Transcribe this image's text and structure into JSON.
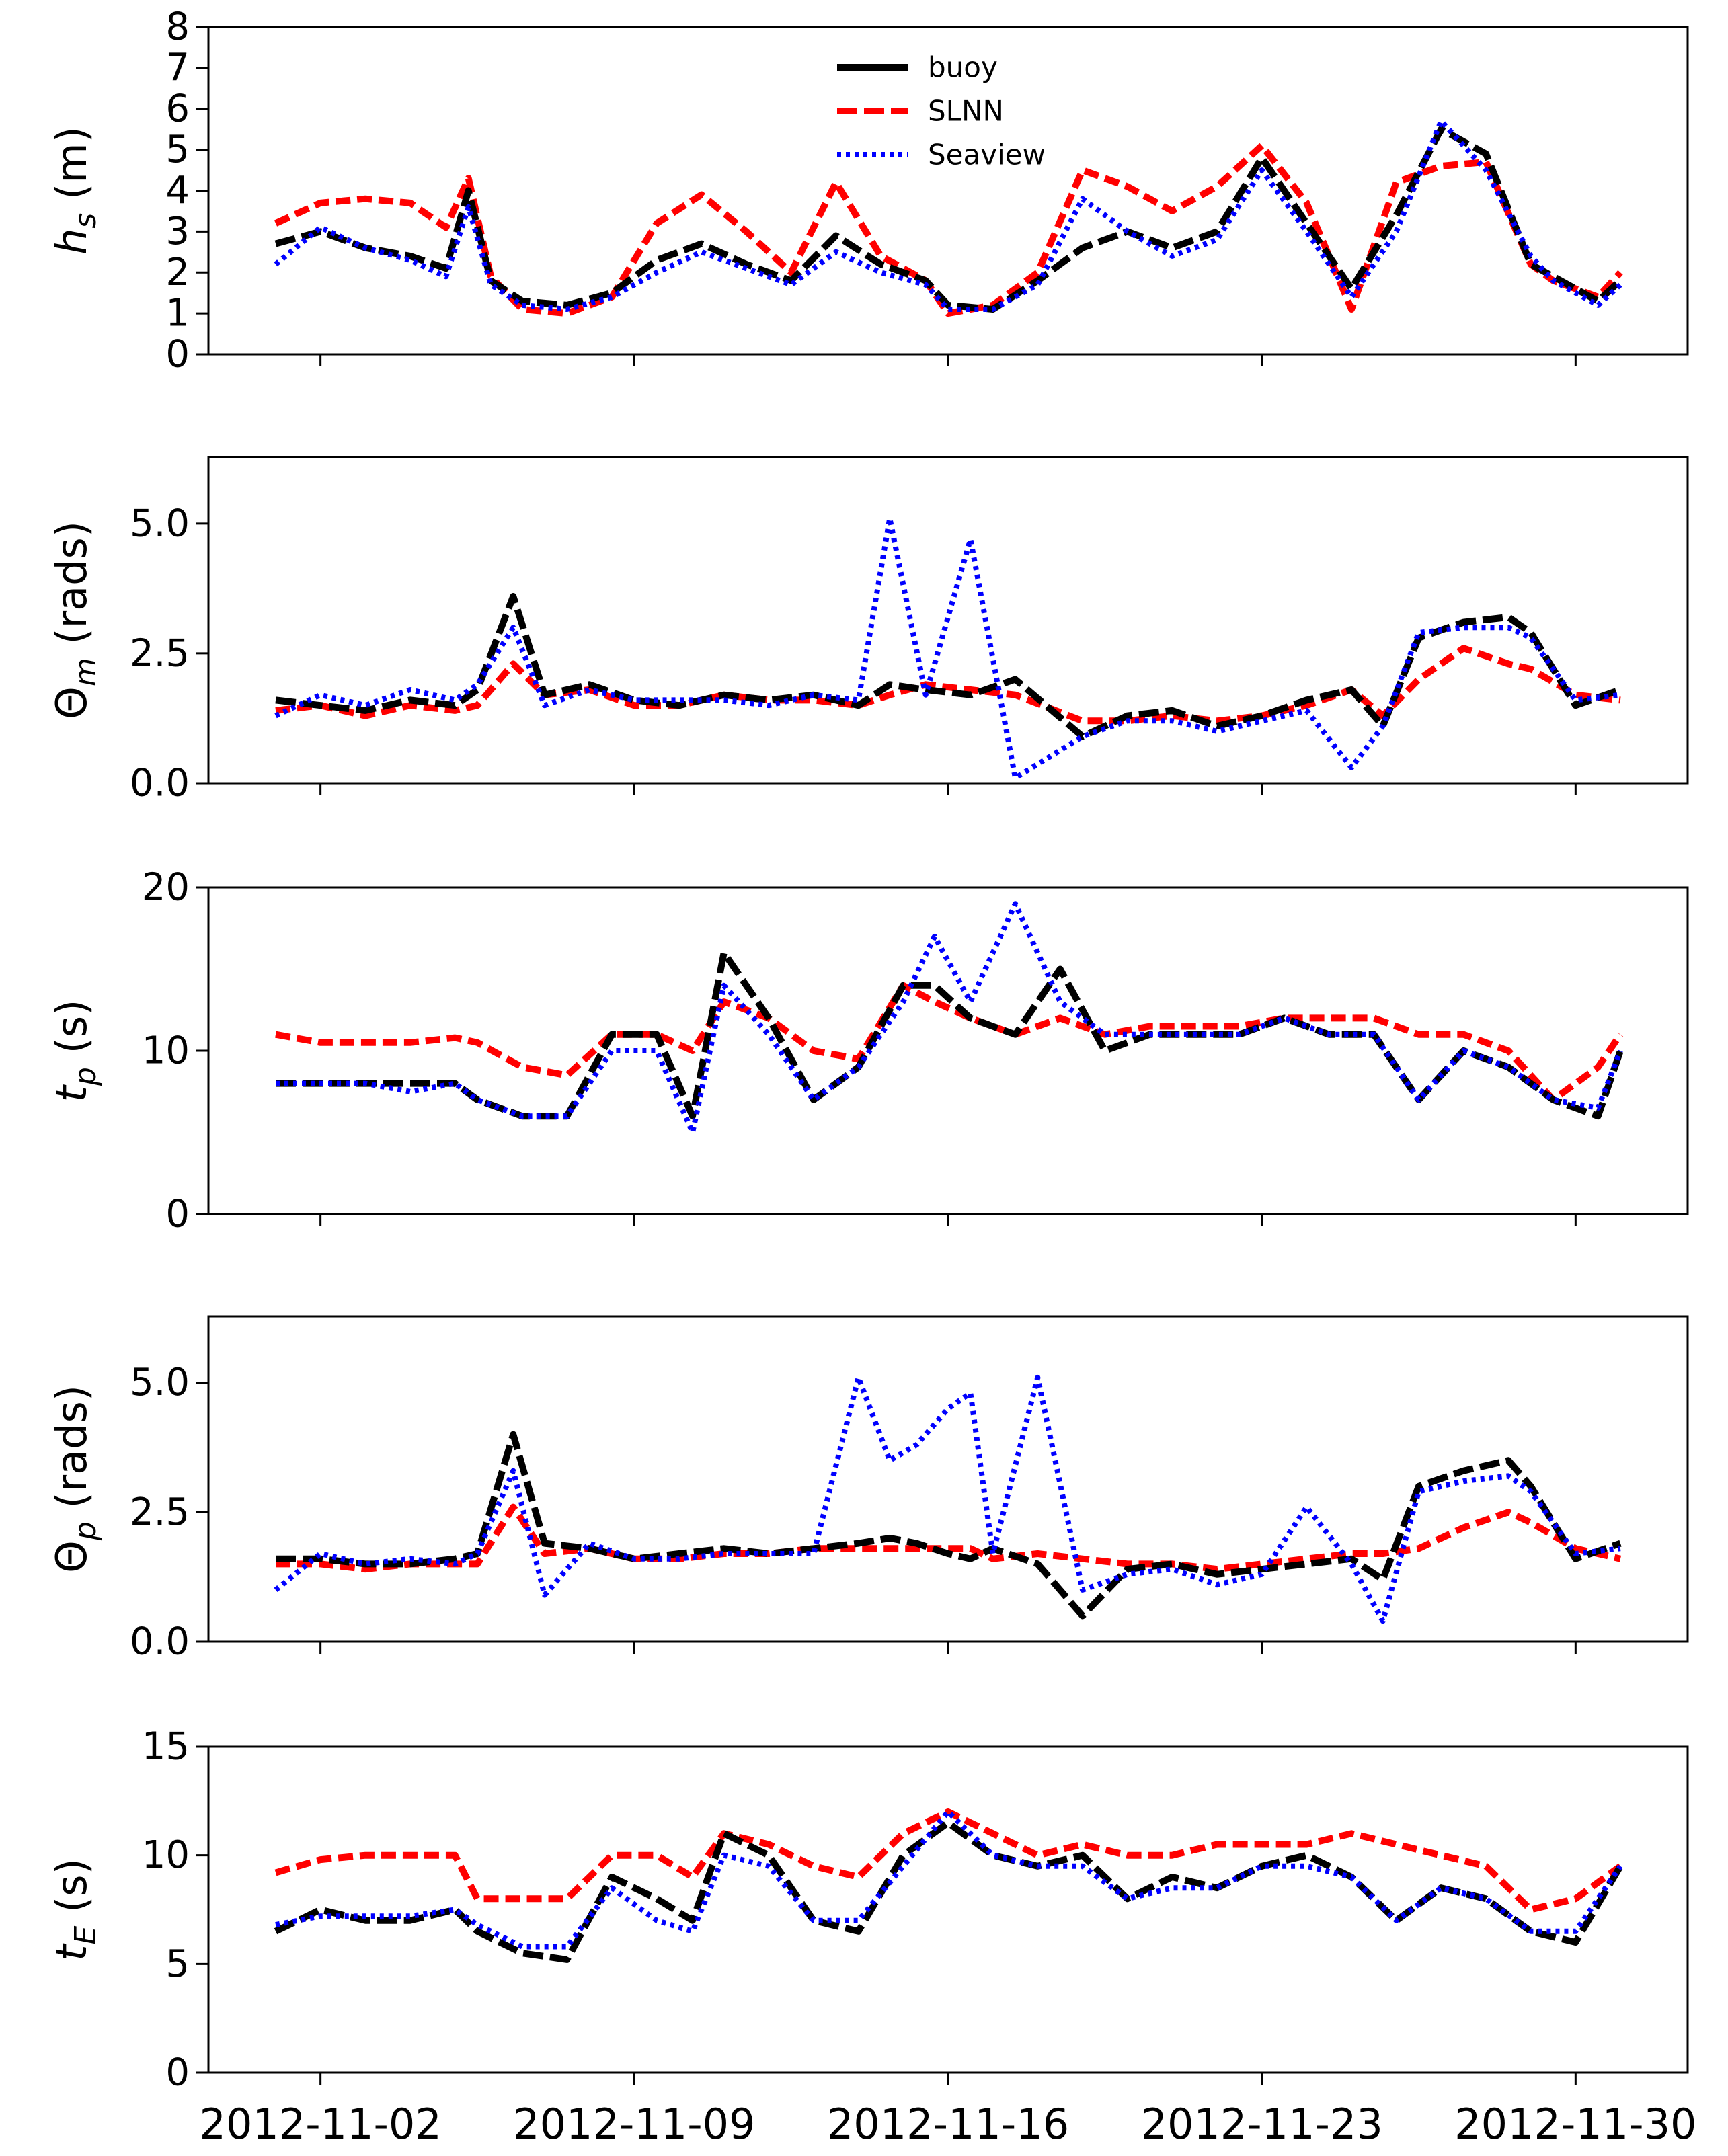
{
  "colors": {
    "buoy": "#000000",
    "SLNN": "#ff0000",
    "Seaview": "#0000ff"
  },
  "legend": {
    "position": "top-center of first panel",
    "entries": [
      {
        "label": "buoy",
        "style": "solid",
        "color": "#000000"
      },
      {
        "label": "SLNN",
        "style": "dashed",
        "color": "#ff0000"
      },
      {
        "label": "Seaview",
        "style": "dotted",
        "color": "#0000ff"
      }
    ]
  },
  "x_axis": {
    "type": "date",
    "range_days": [
      -2.5,
      30.5
    ],
    "day_zero": "2012-11-02",
    "ticks": [
      {
        "day": 0,
        "label": "2012-11-02"
      },
      {
        "day": 7,
        "label": "2012-11-09"
      },
      {
        "day": 14,
        "label": "2012-11-16"
      },
      {
        "day": 21,
        "label": "2012-11-23"
      },
      {
        "day": 28,
        "label": "2012-11-30"
      }
    ]
  },
  "chart_data": [
    {
      "type": "line",
      "ylabel_main": "h",
      "ylabel_sub": "s",
      "ylabel_rest": " (m)",
      "ylim": [
        0,
        8
      ],
      "yticks": [
        0,
        1,
        2,
        3,
        4,
        5,
        6,
        7,
        8
      ],
      "ytick_labels": [
        "0",
        "1",
        "2",
        "3",
        "4",
        "5",
        "6",
        "7",
        "8"
      ],
      "x": [
        -1,
        0,
        1,
        2,
        2.8,
        3.3,
        3.8,
        4.5,
        5.5,
        6.5,
        7.5,
        8.5,
        9.5,
        10.5,
        11.5,
        12.5,
        13.5,
        14,
        15,
        16,
        17,
        18,
        19,
        20,
        21,
        22,
        23,
        24,
        25,
        26,
        27,
        27.5,
        28.5,
        29
      ],
      "series": [
        {
          "name": "buoy",
          "values": [
            2.7,
            3.0,
            2.6,
            2.4,
            2.1,
            4.0,
            1.8,
            1.3,
            1.2,
            1.5,
            2.3,
            2.7,
            2.2,
            1.8,
            2.9,
            2.2,
            1.8,
            1.2,
            1.1,
            1.8,
            2.6,
            3.0,
            2.6,
            3.0,
            4.8,
            3.2,
            1.6,
            3.4,
            5.5,
            4.9,
            2.2,
            1.9,
            1.3,
            1.8
          ]
        },
        {
          "name": "SLNN",
          "values": [
            3.2,
            3.7,
            3.8,
            3.7,
            3.1,
            4.3,
            1.9,
            1.1,
            1.0,
            1.4,
            3.2,
            3.9,
            3.0,
            2.0,
            4.2,
            2.4,
            1.8,
            1.0,
            1.2,
            2.0,
            4.5,
            4.1,
            3.5,
            4.1,
            5.1,
            3.7,
            1.1,
            4.2,
            4.6,
            4.7,
            2.2,
            1.8,
            1.4,
            2.0
          ]
        },
        {
          "name": "Seaview",
          "values": [
            2.2,
            3.1,
            2.6,
            2.3,
            1.9,
            3.6,
            1.7,
            1.2,
            1.1,
            1.4,
            2.0,
            2.5,
            2.1,
            1.7,
            2.5,
            2.0,
            1.7,
            1.1,
            1.1,
            1.7,
            3.8,
            3.0,
            2.4,
            2.8,
            4.5,
            3.0,
            1.4,
            3.0,
            5.7,
            4.5,
            2.4,
            1.8,
            1.2,
            1.7
          ]
        }
      ]
    },
    {
      "type": "line",
      "ylabel_main": "Θ",
      "ylabel_sub": "m",
      "ylabel_rest": " (rads)",
      "ylim": [
        0,
        6.28
      ],
      "yticks": [
        0,
        2.5,
        5
      ],
      "ytick_labels": [
        "0.0",
        "2.5",
        "5.0"
      ],
      "x": [
        -1,
        0,
        1,
        2,
        3,
        3.5,
        4.3,
        5,
        6,
        7,
        8,
        9,
        10,
        11,
        12,
        12.7,
        13.5,
        14.5,
        15.5,
        17,
        18,
        19,
        20,
        21,
        22,
        23,
        23.7,
        24.5,
        25.5,
        26.5,
        27,
        28,
        29
      ],
      "series": [
        {
          "name": "buoy",
          "values": [
            1.6,
            1.5,
            1.4,
            1.6,
            1.5,
            1.8,
            3.6,
            1.7,
            1.9,
            1.6,
            1.5,
            1.7,
            1.6,
            1.7,
            1.5,
            1.9,
            1.8,
            1.7,
            2.0,
            0.9,
            1.3,
            1.4,
            1.1,
            1.3,
            1.6,
            1.8,
            1.1,
            2.8,
            3.1,
            3.2,
            2.9,
            1.5,
            1.8
          ]
        },
        {
          "name": "SLNN",
          "values": [
            1.4,
            1.5,
            1.3,
            1.5,
            1.4,
            1.5,
            2.3,
            1.7,
            1.8,
            1.5,
            1.5,
            1.7,
            1.6,
            1.6,
            1.5,
            1.7,
            1.9,
            1.8,
            1.7,
            1.2,
            1.2,
            1.3,
            1.2,
            1.3,
            1.5,
            1.8,
            1.3,
            2.0,
            2.6,
            2.3,
            2.2,
            1.7,
            1.6
          ]
        },
        {
          "name": "Seaview",
          "values": [
            1.3,
            1.7,
            1.5,
            1.8,
            1.6,
            1.9,
            3.0,
            1.5,
            1.8,
            1.6,
            1.6,
            1.6,
            1.5,
            1.7,
            1.6,
            5.1,
            1.7,
            4.7,
            0.1,
            0.9,
            1.2,
            1.2,
            1.0,
            1.2,
            1.4,
            0.3,
            1.1,
            2.9,
            3.0,
            3.0,
            2.8,
            1.6,
            1.7
          ]
        }
      ]
    },
    {
      "type": "line",
      "ylabel_main": "t",
      "ylabel_sub": "p",
      "ylabel_rest": " (s)",
      "ylim": [
        0,
        20
      ],
      "yticks": [
        0,
        10,
        20
      ],
      "ytick_labels": [
        "0",
        "10",
        "20"
      ],
      "x": [
        -1,
        0,
        1,
        2,
        3,
        3.5,
        4.5,
        5.5,
        6.5,
        7.5,
        8.3,
        9,
        10,
        11,
        12,
        13,
        13.7,
        14.5,
        15.5,
        16.5,
        17.5,
        18.5,
        19.5,
        20.5,
        21.5,
        22.5,
        23.5,
        24.5,
        25.5,
        26.5,
        27.5,
        28.5,
        29
      ],
      "series": [
        {
          "name": "buoy",
          "values": [
            8,
            8,
            8,
            8,
            8,
            7,
            6,
            6,
            11,
            11,
            6,
            16,
            12,
            7,
            9,
            14,
            14,
            12,
            11,
            15,
            10,
            11,
            11,
            11,
            12,
            11,
            11,
            7,
            10,
            9,
            7,
            6,
            10
          ]
        },
        {
          "name": "SLNN",
          "values": [
            11,
            10.5,
            10.5,
            10.5,
            10.8,
            10.5,
            9,
            8.5,
            11,
            11,
            10,
            13,
            12,
            10,
            9.5,
            14,
            13,
            12,
            11,
            12,
            11,
            11.5,
            11.5,
            11.5,
            12,
            12,
            12,
            11,
            11,
            10,
            7,
            9,
            11
          ]
        },
        {
          "name": "Seaview",
          "values": [
            8,
            8,
            8,
            7.5,
            8,
            7,
            6,
            6,
            10,
            10,
            5,
            14,
            11,
            7,
            9,
            13,
            17,
            13,
            19,
            13,
            11,
            11,
            11,
            11,
            12,
            11,
            11,
            7,
            10,
            9,
            7,
            6.5,
            10
          ]
        }
      ]
    },
    {
      "type": "line",
      "ylabel_main": "Θ",
      "ylabel_sub": "p",
      "ylabel_rest": " (rads)",
      "ylim": [
        0,
        6.28
      ],
      "yticks": [
        0,
        2.5,
        5
      ],
      "ytick_labels": [
        "0.0",
        "2.5",
        "5.0"
      ],
      "x": [
        -1,
        0,
        1,
        2,
        3,
        3.5,
        4.3,
        5,
        6,
        7,
        8,
        9,
        10,
        11,
        12,
        12.7,
        13.3,
        14,
        14.5,
        15,
        16,
        17,
        18,
        19,
        20,
        21,
        22,
        23,
        23.7,
        24.5,
        25.5,
        26.5,
        27,
        28,
        29
      ],
      "series": [
        {
          "name": "buoy",
          "values": [
            1.6,
            1.6,
            1.5,
            1.5,
            1.6,
            1.7,
            4.0,
            1.9,
            1.8,
            1.6,
            1.7,
            1.8,
            1.7,
            1.8,
            1.9,
            2.0,
            1.9,
            1.7,
            1.6,
            1.8,
            1.5,
            0.5,
            1.4,
            1.5,
            1.3,
            1.4,
            1.5,
            1.6,
            1.2,
            3.0,
            3.3,
            3.5,
            3.0,
            1.6,
            1.9
          ]
        },
        {
          "name": "SLNN",
          "values": [
            1.5,
            1.5,
            1.4,
            1.5,
            1.5,
            1.5,
            2.6,
            1.7,
            1.8,
            1.6,
            1.6,
            1.7,
            1.7,
            1.8,
            1.8,
            1.8,
            1.8,
            1.8,
            1.8,
            1.6,
            1.7,
            1.6,
            1.5,
            1.5,
            1.4,
            1.5,
            1.6,
            1.7,
            1.7,
            1.8,
            2.2,
            2.5,
            2.3,
            1.8,
            1.6
          ]
        },
        {
          "name": "Seaview",
          "values": [
            1.0,
            1.7,
            1.5,
            1.6,
            1.5,
            1.7,
            3.3,
            0.9,
            1.9,
            1.6,
            1.6,
            1.7,
            1.7,
            1.7,
            5.1,
            3.5,
            3.8,
            4.5,
            4.8,
            1.7,
            5.1,
            1.0,
            1.3,
            1.4,
            1.1,
            1.3,
            2.6,
            1.5,
            0.4,
            2.9,
            3.1,
            3.2,
            2.9,
            1.7,
            1.8
          ]
        }
      ]
    },
    {
      "type": "line",
      "ylabel_main": "t",
      "ylabel_sub": "E",
      "ylabel_rest": " (s)",
      "ylim": [
        0,
        15
      ],
      "yticks": [
        0,
        5,
        10,
        15
      ],
      "ytick_labels": [
        "0",
        "5",
        "10",
        "15"
      ],
      "x": [
        -1,
        0,
        1,
        2,
        3,
        3.5,
        4.5,
        5.5,
        6.5,
        7.5,
        8.3,
        9,
        10,
        11,
        12,
        13,
        14,
        15,
        16,
        17,
        18,
        19,
        20,
        21,
        22,
        23,
        24,
        25,
        26,
        27,
        28,
        29
      ],
      "series": [
        {
          "name": "buoy",
          "values": [
            6.5,
            7.5,
            7,
            7,
            7.5,
            6.5,
            5.5,
            5.2,
            9,
            8,
            7,
            11,
            10,
            7,
            6.5,
            10,
            11.5,
            10,
            9.5,
            10,
            8,
            9,
            8.5,
            9.5,
            10,
            9,
            7,
            8.5,
            8,
            6.5,
            6,
            9.5
          ]
        },
        {
          "name": "SLNN",
          "values": [
            9.2,
            9.8,
            10,
            10,
            10,
            8,
            8,
            8,
            10,
            10,
            9,
            11,
            10.5,
            9.5,
            9,
            11,
            12,
            11,
            10,
            10.5,
            10,
            10,
            10.5,
            10.5,
            10.5,
            11,
            10.5,
            10,
            9.5,
            7.5,
            8,
            9.5
          ]
        },
        {
          "name": "Seaview",
          "values": [
            6.8,
            7.2,
            7.2,
            7.2,
            7.5,
            6.8,
            5.8,
            5.8,
            8.5,
            7,
            6.5,
            10,
            9.5,
            7,
            7,
            9.5,
            12,
            10,
            9.5,
            9.5,
            8,
            8.5,
            8.5,
            9.5,
            9.5,
            9,
            7,
            8.5,
            8,
            6.5,
            6.5,
            9.5
          ]
        }
      ]
    }
  ]
}
